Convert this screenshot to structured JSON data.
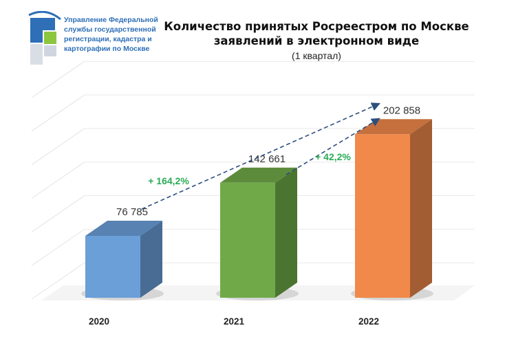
{
  "header": {
    "org_lines": [
      "Управление Федеральной",
      "службы государственной",
      "регистрации, кадастра и",
      "картографии по Москве"
    ]
  },
  "colors": {
    "bar_2020": "#6a9fd8",
    "bar_2021": "#70aa48",
    "bar_2022": "#f0894a",
    "growth_text": "#2aab56",
    "arrow": "#2b4f7e"
  },
  "chart_data": {
    "type": "bar",
    "title_lines": [
      "Количество принятых Росреестром по Москве",
      "заявлений в электронном виде"
    ],
    "subtitle": "(1 квартал)",
    "categories": [
      "2020",
      "2021",
      "2022"
    ],
    "values": [
      76785,
      142661,
      202858
    ],
    "value_labels": [
      "76 785",
      "142 661",
      "202 858"
    ],
    "ylim": [
      0,
      250000
    ],
    "grid": true,
    "growth_annotations": [
      {
        "label": "+ 164,2%",
        "from": "2020",
        "to": "2022"
      },
      {
        "label": "+ 42,2%",
        "from": "2021",
        "to": "2022"
      }
    ]
  }
}
